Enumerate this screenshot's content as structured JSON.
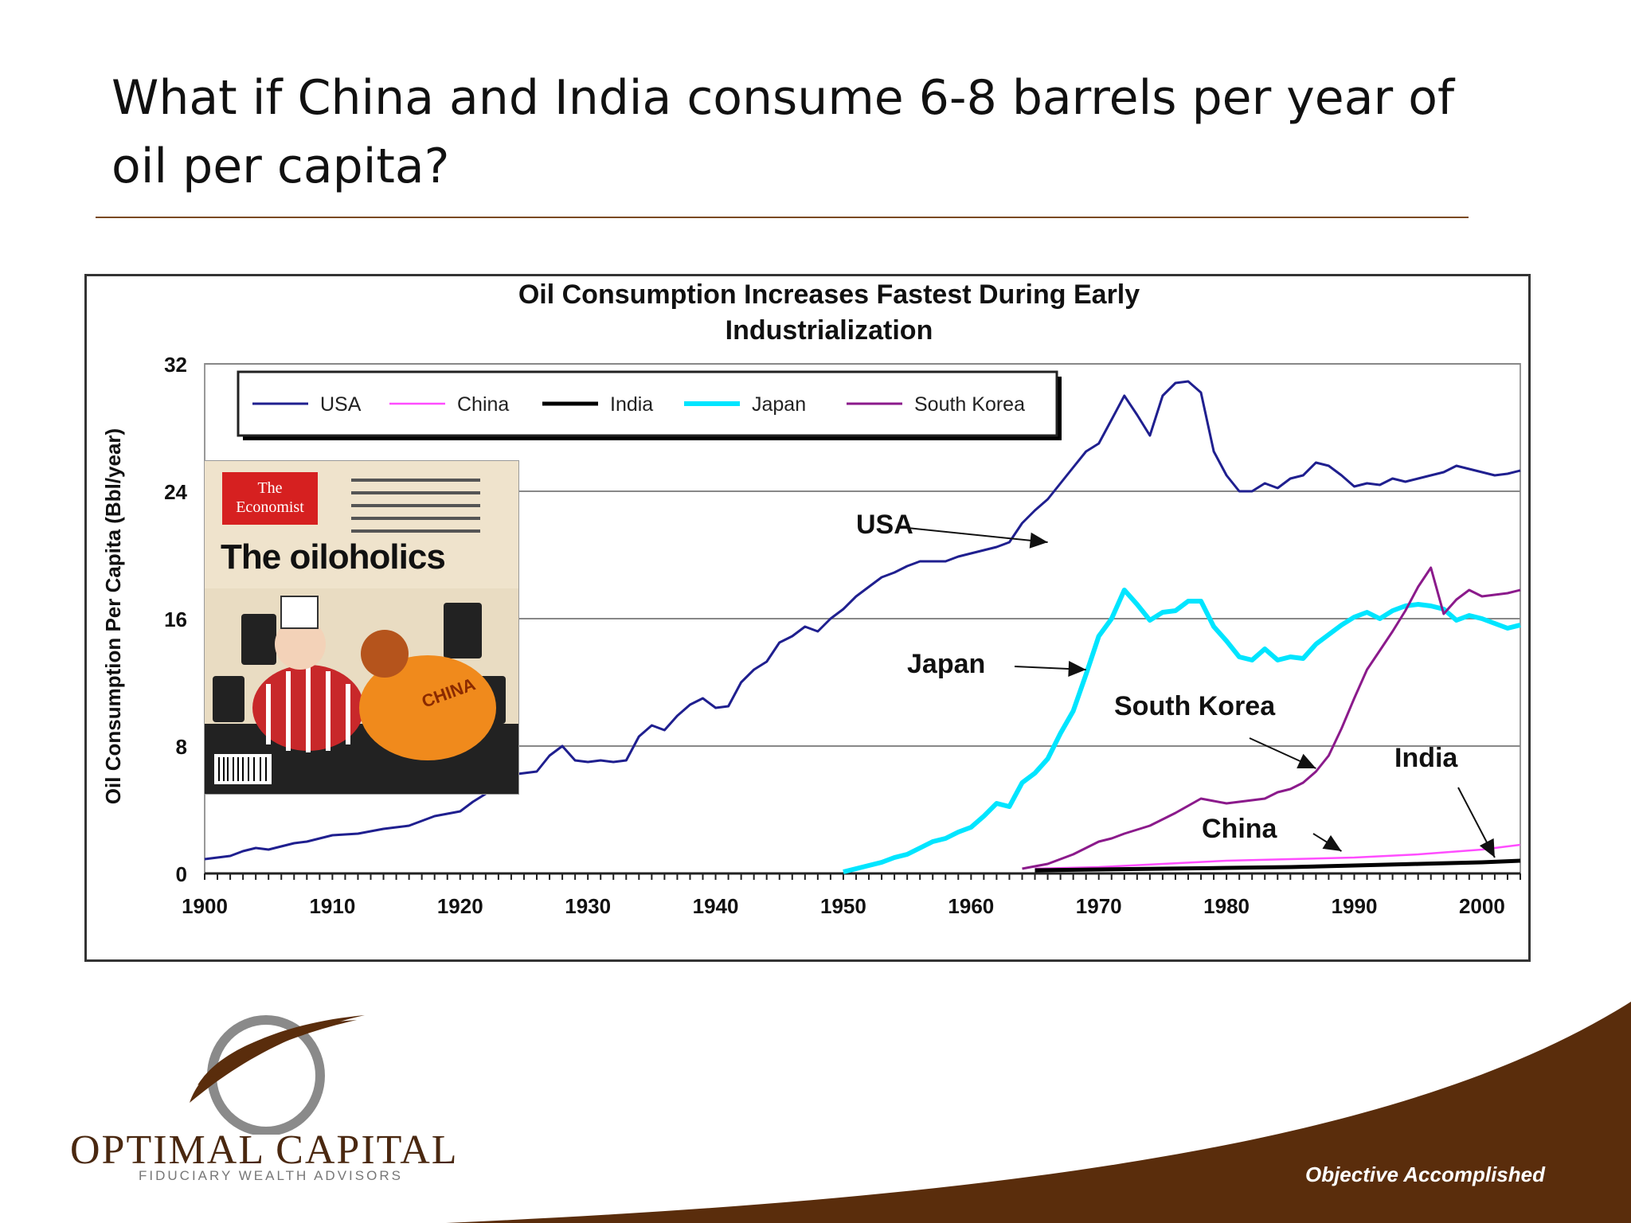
{
  "slide": {
    "title": "What if China and India consume 6-8 barrels per year of oil per capita?",
    "footer_tagline": "Objective Accomplished",
    "logo": {
      "name": "OPTIMAL CAPITAL",
      "subtitle": "FIDUCIARY WEALTH ADVISORS"
    }
  },
  "magazine": {
    "masthead": "The Economist",
    "headline": "The oiloholics",
    "art_label": "CHINA"
  },
  "colors": {
    "usa": "#1f1f8f",
    "china": "#ff4dff",
    "india": "#000000",
    "japan": "#00e5ff",
    "south_korea": "#8b1a8b",
    "accent_brown": "#5a2d0c"
  },
  "chart_data": {
    "type": "line",
    "title": "Oil Consumption Increases Fastest During Early Industrialization",
    "title_lines": [
      "Oil Consumption Increases Fastest During Early",
      "Industrialization"
    ],
    "xlabel": "",
    "ylabel": "Oil Consumption Per Capita (Bbl/year)",
    "xlim": [
      1900,
      2003
    ],
    "ylim": [
      0,
      32
    ],
    "x_ticks": [
      1900,
      1910,
      1920,
      1930,
      1940,
      1950,
      1960,
      1970,
      1980,
      1990,
      2000
    ],
    "y_ticks": [
      0,
      8,
      16,
      24,
      32
    ],
    "grid": "horizontal",
    "legend": {
      "placement": "top-left",
      "entries": [
        "USA",
        "China",
        "India",
        "Japan",
        "South Korea"
      ]
    },
    "annotations": [
      {
        "text": "USA",
        "x": 1966,
        "y": 20.8
      },
      {
        "text": "Japan",
        "x": 1969,
        "y": 12.8
      },
      {
        "text": "South Korea",
        "x": 1987,
        "y": 6.6
      },
      {
        "text": "India",
        "x": 2001,
        "y": 1.0
      },
      {
        "text": "China",
        "x": 1989,
        "y": 1.4
      }
    ],
    "series": [
      {
        "name": "USA",
        "x": [
          1900,
          1902,
          1903,
          1904,
          1905,
          1906,
          1907,
          1908,
          1910,
          1912,
          1914,
          1915,
          1916,
          1918,
          1920,
          1921,
          1922,
          1923,
          1924,
          1926,
          1927,
          1928,
          1929,
          1930,
          1931,
          1932,
          1933,
          1934,
          1935,
          1936,
          1937,
          1938,
          1939,
          1940,
          1941,
          1942,
          1943,
          1944,
          1945,
          1946,
          1947,
          1948,
          1949,
          1950,
          1951,
          1952,
          1953,
          1954,
          1955,
          1956,
          1957,
          1958,
          1959,
          1960,
          1961,
          1962,
          1963,
          1964,
          1965,
          1966,
          1967,
          1968,
          1969,
          1970,
          1971,
          1972,
          1973,
          1974,
          1975,
          1976,
          1977,
          1978,
          1979,
          1980,
          1981,
          1982,
          1983,
          1984,
          1985,
          1986,
          1987,
          1988,
          1989,
          1990,
          1991,
          1992,
          1993,
          1994,
          1995,
          1996,
          1997,
          1998,
          1999,
          2000,
          2001,
          2002,
          2003
        ],
        "values": [
          0.9,
          1.1,
          1.4,
          1.6,
          1.5,
          1.7,
          1.9,
          2.0,
          2.4,
          2.5,
          2.8,
          2.9,
          3.0,
          3.6,
          3.9,
          4.5,
          5.0,
          5.8,
          6.2,
          6.4,
          7.4,
          8.0,
          7.1,
          7.0,
          7.1,
          7.0,
          7.1,
          8.6,
          9.3,
          9.0,
          9.9,
          10.6,
          11.0,
          10.4,
          10.5,
          12.0,
          12.8,
          13.3,
          14.5,
          14.9,
          15.5,
          15.2,
          16.0,
          16.6,
          17.4,
          18.0,
          18.6,
          18.9,
          19.3,
          19.6,
          19.6,
          19.6,
          19.9,
          20.1,
          20.3,
          20.5,
          20.8,
          22.0,
          22.8,
          23.5,
          24.5,
          25.5,
          26.5,
          27.0,
          28.5,
          30.0,
          28.8,
          27.5,
          30.0,
          30.8,
          30.9,
          30.2,
          26.5,
          25.0,
          24.0,
          24.0,
          24.5,
          24.2,
          24.8,
          25.0,
          25.8,
          25.6,
          25.0,
          24.3,
          24.5,
          24.4,
          24.8,
          24.6,
          24.8,
          25.0,
          25.2,
          25.6,
          25.4,
          25.2,
          25.0,
          25.1,
          25.3
        ]
      },
      {
        "name": "China",
        "x": [
          1965,
          1970,
          1975,
          1980,
          1985,
          1990,
          1995,
          2000,
          2003
        ],
        "values": [
          0.3,
          0.4,
          0.6,
          0.8,
          0.9,
          1.0,
          1.2,
          1.5,
          1.8
        ]
      },
      {
        "name": "India",
        "x": [
          1965,
          1970,
          1975,
          1980,
          1985,
          1990,
          1995,
          2000,
          2003
        ],
        "values": [
          0.2,
          0.25,
          0.3,
          0.35,
          0.4,
          0.5,
          0.6,
          0.7,
          0.8
        ]
      },
      {
        "name": "Japan",
        "x": [
          1950,
          1951,
          1952,
          1953,
          1954,
          1955,
          1956,
          1957,
          1958,
          1959,
          1960,
          1961,
          1962,
          1963,
          1964,
          1965,
          1966,
          1967,
          1968,
          1969,
          1970,
          1971,
          1972,
          1973,
          1974,
          1975,
          1976,
          1977,
          1978,
          1979,
          1980,
          1981,
          1982,
          1983,
          1984,
          1985,
          1986,
          1987,
          1988,
          1989,
          1990,
          1991,
          1992,
          1993,
          1994,
          1995,
          1996,
          1997,
          1998,
          1999,
          2000,
          2001,
          2002,
          2003
        ],
        "values": [
          0.1,
          0.3,
          0.5,
          0.7,
          1.0,
          1.2,
          1.6,
          2.0,
          2.2,
          2.6,
          2.9,
          3.6,
          4.4,
          4.2,
          5.7,
          6.3,
          7.2,
          8.8,
          10.2,
          12.5,
          14.9,
          16.0,
          17.8,
          16.9,
          15.9,
          16.4,
          16.5,
          17.1,
          17.1,
          15.5,
          14.6,
          13.6,
          13.4,
          14.1,
          13.4,
          13.6,
          13.5,
          14.4,
          15.0,
          15.6,
          16.1,
          16.4,
          16.0,
          16.5,
          16.8,
          16.9,
          16.8,
          16.6,
          15.9,
          16.2,
          16.0,
          15.7,
          15.4,
          15.6
        ]
      },
      {
        "name": "South Korea",
        "x": [
          1964,
          1966,
          1968,
          1970,
          1971,
          1972,
          1974,
          1976,
          1978,
          1980,
          1982,
          1983,
          1984,
          1985,
          1986,
          1987,
          1988,
          1989,
          1990,
          1991,
          1992,
          1993,
          1994,
          1995,
          1996,
          1997,
          1998,
          1999,
          2000,
          2001,
          2002,
          2003
        ],
        "values": [
          0.3,
          0.6,
          1.2,
          2.0,
          2.2,
          2.5,
          3.0,
          3.8,
          4.7,
          4.4,
          4.6,
          4.7,
          5.1,
          5.3,
          5.7,
          6.4,
          7.4,
          9.1,
          11.0,
          12.8,
          14.0,
          15.2,
          16.5,
          18.0,
          19.2,
          16.3,
          17.2,
          17.8,
          17.4,
          17.5,
          17.6,
          17.8
        ]
      }
    ]
  }
}
